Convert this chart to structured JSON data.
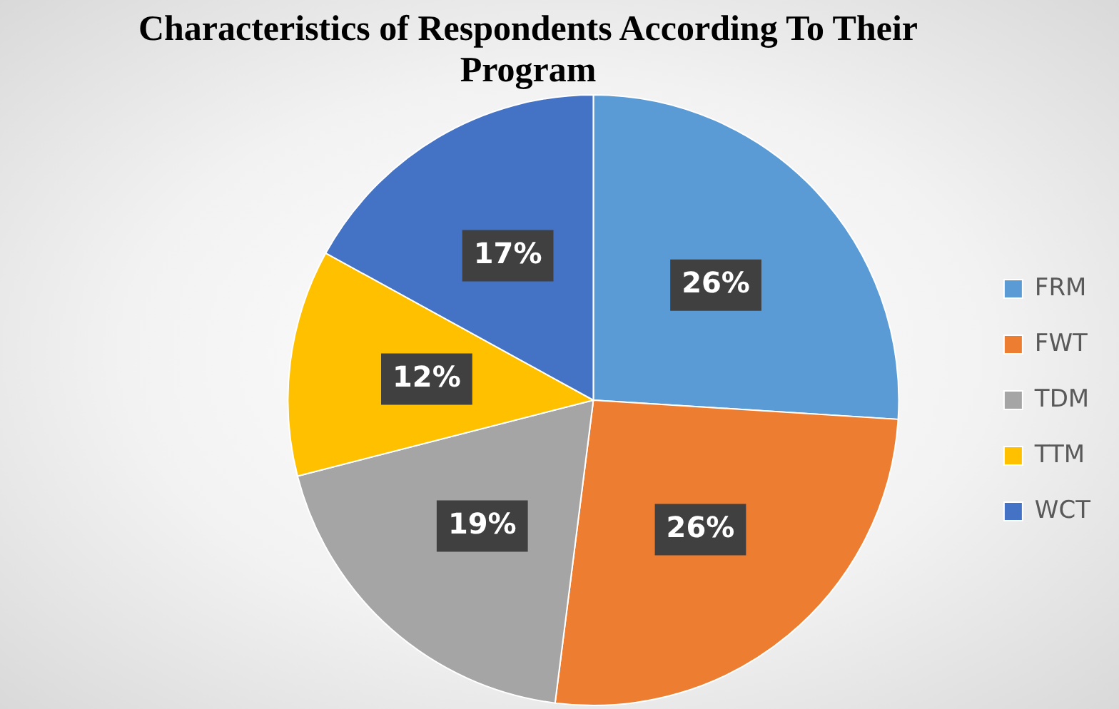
{
  "chart_data": {
    "type": "pie",
    "title": "Characteristics of Respondents According To Their Program",
    "categories": [
      "FRM",
      "FWT",
      "TDM",
      "TTM",
      "WCT"
    ],
    "values": [
      26,
      26,
      19,
      12,
      17
    ],
    "value_labels": [
      "26%",
      "26%",
      "19%",
      "12%",
      "17%"
    ],
    "colors": [
      "#5b9bd5",
      "#ed7d31",
      "#a5a5a5",
      "#ffc000",
      "#4472c4"
    ],
    "legend": "right"
  }
}
